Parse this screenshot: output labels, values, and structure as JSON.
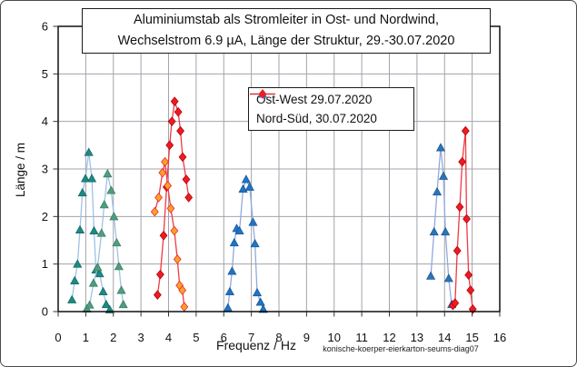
{
  "footer_note": "konische-koerper-eierkarton-seums-diag07",
  "chart_data": {
    "type": "line",
    "title": "Aluminiumstab als Stromleiter in Ost- und Nordwind, Wechselstrom 6.9 µA, Länge der Struktur, 29.-30.07.2020",
    "title_lines": [
      "Aluminiumstab als Stromleiter in Ost- und Nordwind,",
      "Wechselstrom 6.9 µA, Länge der Struktur, 29.-30.07.2020"
    ],
    "xlabel": "Frequenz / Hz",
    "ylabel": "Länge / m",
    "xlim": [
      0,
      16
    ],
    "ylim": [
      0,
      6
    ],
    "x_ticks": [
      "0",
      "1",
      "2",
      "3",
      "4",
      "5",
      "6",
      "7",
      "8",
      "9",
      "10",
      "11",
      "12",
      "13",
      "14",
      "15",
      "16"
    ],
    "y_ticks": [
      "0",
      "1",
      "2",
      "3",
      "4",
      "5",
      "6"
    ],
    "grid": true,
    "grid_color": "#a3a3ac",
    "legend_position": "upper center",
    "series": [
      {
        "name": "Ost-West 29.07.2020",
        "marker": "triangle-up",
        "legend_marker_color": "#2e74b5",
        "legend_line_color": "#8faadc",
        "segments": [
          {
            "marker_fill": "#1d8a84",
            "marker_stroke": "#136a66",
            "line_color": "#9dc3e6",
            "points": [
              [
                0.5,
                0.25
              ],
              [
                0.6,
                0.65
              ],
              [
                0.7,
                1.0
              ],
              [
                0.79,
                1.72
              ],
              [
                0.88,
                2.5
              ],
              [
                0.99,
                2.8
              ],
              [
                1.11,
                3.35
              ],
              [
                1.22,
                2.8
              ],
              [
                1.3,
                1.7
              ],
              [
                1.37,
                0.88
              ],
              [
                1.5,
                0.8
              ],
              [
                1.63,
                0.42
              ],
              [
                1.74,
                0.15
              ],
              [
                1.87,
                0.04
              ]
            ]
          },
          {
            "marker_fill": "#4f9e7f",
            "marker_stroke": "#3a7f63",
            "line_color": "#9dc3e6",
            "points": [
              [
                1.04,
                0.06
              ],
              [
                1.14,
                0.14
              ],
              [
                1.28,
                0.6
              ],
              [
                1.43,
                0.93
              ],
              [
                1.57,
                1.65
              ],
              [
                1.67,
                2.25
              ],
              [
                1.79,
                2.9
              ],
              [
                1.92,
                2.55
              ],
              [
                2.02,
                2.0
              ],
              [
                2.12,
                1.45
              ],
              [
                2.2,
                0.95
              ],
              [
                2.29,
                0.45
              ],
              [
                2.36,
                0.15
              ]
            ]
          },
          {
            "marker_fill": "#2273c3",
            "marker_stroke": "#17599c",
            "line_color": "#8faadc",
            "points": [
              [
                6.15,
                0.08
              ],
              [
                6.22,
                0.42
              ],
              [
                6.3,
                0.85
              ],
              [
                6.38,
                1.45
              ],
              [
                6.47,
                1.75
              ],
              [
                6.57,
                1.7
              ],
              [
                6.7,
                2.58
              ],
              [
                6.81,
                2.78
              ],
              [
                6.94,
                2.62
              ],
              [
                7.06,
                1.88
              ],
              [
                7.13,
                1.43
              ],
              [
                7.21,
                0.4
              ],
              [
                7.33,
                0.2
              ],
              [
                7.43,
                0.05
              ]
            ]
          },
          {
            "marker_fill": "#2e74b5",
            "marker_stroke": "#1d5c97",
            "line_color": "#8faadc",
            "points": [
              [
                13.5,
                0.75
              ],
              [
                13.62,
                1.68
              ],
              [
                13.73,
                2.52
              ],
              [
                13.86,
                3.45
              ],
              [
                13.96,
                2.85
              ],
              [
                14.03,
                1.68
              ],
              [
                14.15,
                0.7
              ],
              [
                14.26,
                0.15
              ]
            ]
          }
        ]
      },
      {
        "name": "Nord-Süd, 30.07.2020",
        "marker": "diamond",
        "legend_marker_color": "#ec1c24",
        "legend_line_color": "#ec1c24",
        "segments": [
          {
            "marker_fill": "#ec1c24",
            "marker_stroke": "#b8000a",
            "line_color": "#ee3b42",
            "points": [
              [
                3.6,
                0.35
              ],
              [
                3.7,
                0.78
              ],
              [
                3.82,
                1.6
              ],
              [
                3.93,
                2.62
              ],
              [
                4.04,
                3.5
              ],
              [
                4.12,
                4.0
              ],
              [
                4.22,
                4.42
              ],
              [
                4.35,
                4.2
              ],
              [
                4.43,
                3.8
              ],
              [
                4.51,
                3.25
              ],
              [
                4.64,
                2.78
              ],
              [
                4.73,
                2.4
              ]
            ]
          },
          {
            "marker_fill": "#ffa128",
            "marker_stroke": "#e8262d",
            "line_color": "#ee3b42",
            "points": [
              [
                3.5,
                2.1
              ],
              [
                3.64,
                2.4
              ],
              [
                3.78,
                2.92
              ],
              [
                3.87,
                3.15
              ],
              [
                3.97,
                2.65
              ],
              [
                4.08,
                2.17
              ],
              [
                4.21,
                1.7
              ],
              [
                4.32,
                1.1
              ],
              [
                4.4,
                0.55
              ],
              [
                4.5,
                0.45
              ],
              [
                4.57,
                0.1
              ]
            ]
          },
          {
            "marker_fill": "#ec1c24",
            "marker_stroke": "#b8000a",
            "line_color": "#ee3b42",
            "points": [
              [
                14.3,
                0.13
              ],
              [
                14.38,
                0.18
              ],
              [
                14.46,
                1.28
              ],
              [
                14.55,
                2.2
              ],
              [
                14.64,
                3.15
              ],
              [
                14.76,
                3.8
              ],
              [
                14.8,
                1.95
              ],
              [
                14.87,
                0.77
              ],
              [
                14.94,
                0.45
              ],
              [
                15.02,
                0.05
              ]
            ]
          }
        ]
      }
    ]
  }
}
